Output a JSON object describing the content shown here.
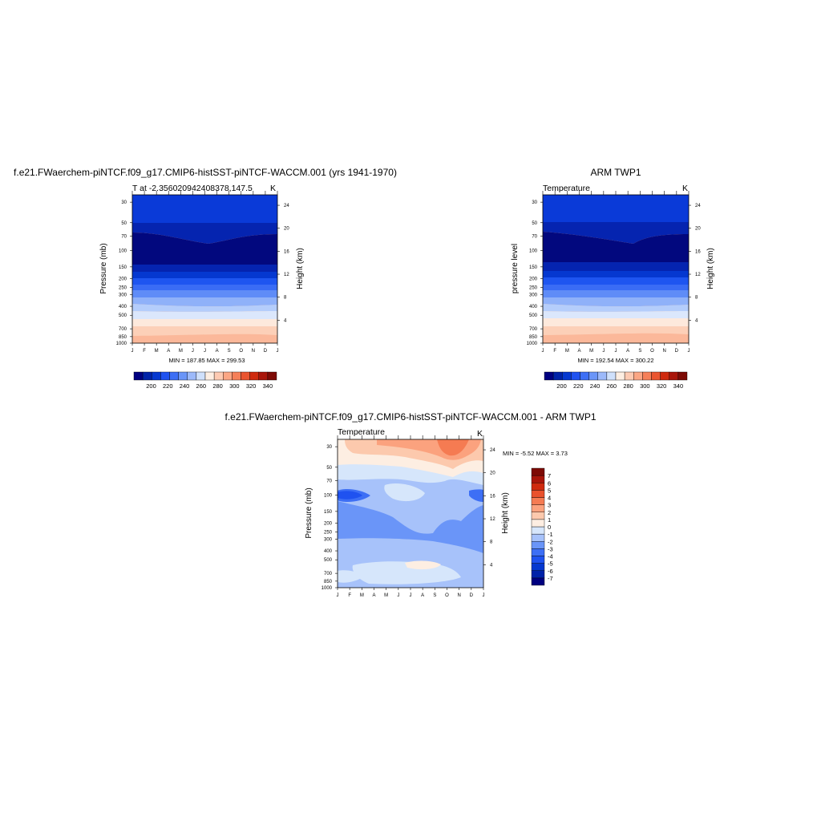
{
  "panels": [
    {
      "id": "model",
      "title": "f.e21.FWaerchem-piNTCF.f09_g17.CMIP6-histSST-piNTCF-WACCM.001 (yrs 1941-1970)",
      "subtitle_left": "T at -2.356020942408378,147.5",
      "subtitle_right": "K",
      "ylabel_left": "Pressure (mb)",
      "ylabel_right": "Height (km)",
      "minmax": "MIN = 187.85 MAX = 299.53"
    },
    {
      "id": "obs",
      "title": "ARM TWP1",
      "subtitle_left": "Temperature",
      "subtitle_right": "K",
      "ylabel_left": "pressure level",
      "ylabel_right": "Height (km)",
      "minmax": "MIN = 192.54 MAX = 300.22"
    },
    {
      "id": "diff",
      "title": "f.e21.FWaerchem-piNTCF.f09_g17.CMIP6-histSST-piNTCF-WACCM.001 - ARM TWP1",
      "subtitle_left": "Temperature",
      "subtitle_right": "K",
      "ylabel_left": "Pressure (mb)",
      "ylabel_right": "Height (km)",
      "minmax": "MIN =  -5.52 MAX =   3.73"
    }
  ],
  "chart_data": [
    {
      "type": "heatmap",
      "title": "f.e21.FWaerchem-piNTCF.f09_g17.CMIP6-histSST-piNTCF-WACCM.001 (yrs 1941-1970)",
      "subtitle": "T at -2.356020942408378,147.5",
      "units": "K",
      "x_ticks": [
        "J",
        "F",
        "M",
        "A",
        "M",
        "J",
        "J",
        "A",
        "S",
        "O",
        "N",
        "D",
        "J"
      ],
      "y_ticks": [
        "30",
        "50",
        "70",
        "100",
        "150",
        "200",
        "250",
        "300",
        "400",
        "500",
        "700",
        "850",
        "1000"
      ],
      "y_right_ticks": [
        "24",
        "20",
        "16",
        "12",
        "8",
        "4"
      ],
      "xlabel": "",
      "ylabel": "Pressure (mb)",
      "ylabel_right": "Height (km)",
      "y_scale": "log",
      "ylim": [
        1000,
        25
      ],
      "colorbar_ticks": [
        "200",
        "220",
        "240",
        "260",
        "280",
        "300",
        "320",
        "340"
      ],
      "levels": [
        190,
        200,
        210,
        220,
        230,
        240,
        250,
        260,
        270,
        280,
        290,
        300,
        310,
        320,
        330,
        340
      ],
      "colors": [
        "#000080",
        "#0022a8",
        "#0538d0",
        "#1f52f0",
        "#3d6ff5",
        "#6a95f8",
        "#9cb9fa",
        "#cfe0fb",
        "#fdeee2",
        "#fdcab2",
        "#fba684",
        "#f57f58",
        "#ea5530",
        "#cf2a0e",
        "#a9150a",
        "#7d0a05"
      ],
      "min": 187.85,
      "max": 299.53
    },
    {
      "type": "heatmap",
      "title": "ARM TWP1",
      "subtitle": "Temperature",
      "units": "K",
      "x_ticks": [
        "J",
        "F",
        "M",
        "A",
        "M",
        "J",
        "J",
        "A",
        "S",
        "O",
        "N",
        "D",
        "J"
      ],
      "y_ticks": [
        "30",
        "50",
        "70",
        "100",
        "150",
        "200",
        "250",
        "300",
        "400",
        "500",
        "700",
        "850",
        "1000"
      ],
      "y_right_ticks": [
        "24",
        "20",
        "16",
        "12",
        "8",
        "4"
      ],
      "xlabel": "",
      "ylabel": "pressure level",
      "ylabel_right": "Height (km)",
      "y_scale": "log",
      "ylim": [
        1000,
        25
      ],
      "colorbar_ticks": [
        "200",
        "220",
        "240",
        "260",
        "280",
        "300",
        "320",
        "340"
      ],
      "levels": [
        190,
        200,
        210,
        220,
        230,
        240,
        250,
        260,
        270,
        280,
        290,
        300,
        310,
        320,
        330,
        340
      ],
      "colors": [
        "#000080",
        "#0022a8",
        "#0538d0",
        "#1f52f0",
        "#3d6ff5",
        "#6a95f8",
        "#9cb9fa",
        "#cfe0fb",
        "#fdeee2",
        "#fdcab2",
        "#fba684",
        "#f57f58",
        "#ea5530",
        "#cf2a0e",
        "#a9150a",
        "#7d0a05"
      ],
      "min": 192.54,
      "max": 300.22
    },
    {
      "type": "heatmap",
      "title": "f.e21.FWaerchem-piNTCF.f09_g17.CMIP6-histSST-piNTCF-WACCM.001 - ARM TWP1",
      "subtitle": "Temperature",
      "units": "K",
      "x_ticks": [
        "J",
        "F",
        "M",
        "A",
        "M",
        "J",
        "J",
        "A",
        "S",
        "O",
        "N",
        "D",
        "J"
      ],
      "y_ticks": [
        "30",
        "50",
        "70",
        "100",
        "150",
        "200",
        "250",
        "300",
        "400",
        "500",
        "700",
        "850",
        "1000"
      ],
      "y_right_ticks": [
        "24",
        "20",
        "16",
        "12",
        "8",
        "4"
      ],
      "xlabel": "",
      "ylabel": "Pressure (mb)",
      "ylabel_right": "Height (km)",
      "y_scale": "log",
      "ylim": [
        1000,
        25
      ],
      "colorbar_ticks": [
        "7",
        "6",
        "5",
        "4",
        "3",
        "2",
        "1",
        "0",
        "-1",
        "-2",
        "-3",
        "-4",
        "-5",
        "-6",
        "-7"
      ],
      "levels": [
        -7,
        -6,
        -5,
        -4,
        -3,
        -2,
        -1,
        0,
        1,
        2,
        3,
        4,
        5,
        6,
        7
      ],
      "colors": [
        "#000080",
        "#0022a8",
        "#0538d0",
        "#1f52f0",
        "#3d6ff5",
        "#6a95f8",
        "#a7c2fa",
        "#d6e6fb",
        "#fdeee2",
        "#fcc9ad",
        "#fba27e",
        "#f57b52",
        "#e9512c",
        "#cf2a0e",
        "#a9150a",
        "#7d0a05"
      ],
      "min": -5.52,
      "max": 3.73
    }
  ]
}
